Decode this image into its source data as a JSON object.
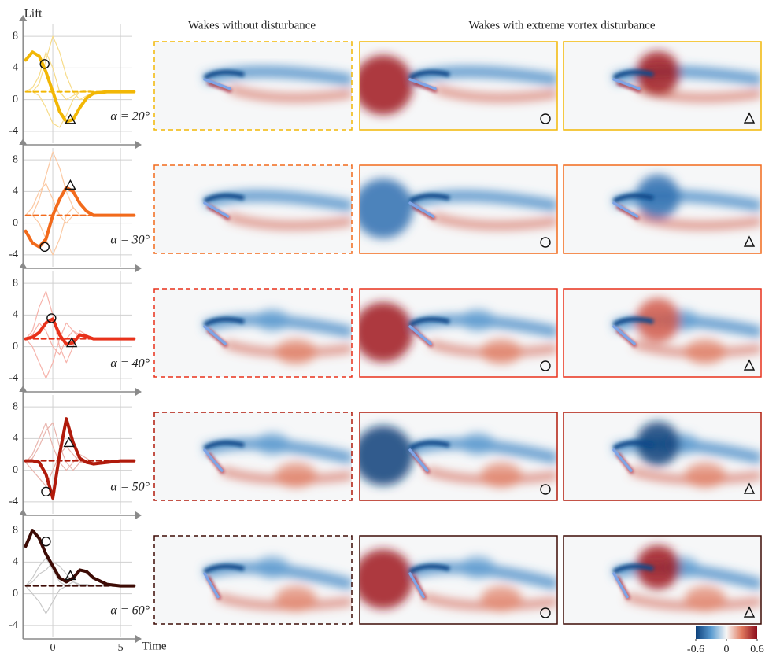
{
  "header": {
    "lift_label": "Lift",
    "time_label": "Time",
    "col1_title": "Wakes without disturbance",
    "col2_title": "Wakes with extreme vortex disturbance"
  },
  "colorbar": {
    "lim": [
      -0.6,
      0.6
    ],
    "ticks": [
      -0.6,
      0,
      0.6
    ]
  },
  "chart_data": [
    {
      "type": "line",
      "annotation": "α = 20°",
      "color": "#f2b705",
      "xlim": [
        -2.2,
        6.1
      ],
      "ylim": [
        -5.5,
        9.5
      ],
      "xticks": [
        0,
        5
      ],
      "yticks": [
        -4,
        0,
        4,
        8
      ],
      "grid": true,
      "show_xtick_labels": false,
      "x": [
        -2,
        -1.5,
        -1,
        -0.5,
        0,
        0.5,
        1,
        1.5,
        2,
        2.5,
        3,
        4,
        5,
        6
      ],
      "series": [
        {
          "color": "#f7dc8a",
          "style": "thin",
          "values": [
            1,
            1,
            2,
            5,
            8,
            6,
            3,
            1,
            0,
            0.5,
            1,
            1,
            1,
            1
          ]
        },
        {
          "color": "#f7dc8a",
          "style": "thin",
          "values": [
            1,
            1,
            0.5,
            -1,
            -3,
            -3.5,
            -2,
            0,
            1,
            1.2,
            1,
            1,
            1,
            1
          ]
        },
        {
          "color": "#f7dc8a",
          "style": "thin",
          "values": [
            1,
            1.5,
            3,
            6,
            4,
            1,
            0,
            0.5,
            1,
            1,
            1,
            1,
            1,
            1
          ]
        },
        {
          "color": "#f2b705",
          "style": "dashed",
          "values": [
            1,
            1,
            1,
            1,
            1,
            1,
            1,
            1,
            1,
            1,
            1,
            1,
            1,
            1
          ]
        },
        {
          "color": "#f2b705",
          "style": "thick",
          "values": [
            5,
            6,
            5.5,
            3.5,
            1,
            -1.5,
            -2.8,
            -2.5,
            -1,
            0.2,
            0.8,
            1,
            1,
            1
          ]
        }
      ],
      "markers": [
        {
          "shape": "circle",
          "x": -0.6,
          "y": 4.5
        },
        {
          "shape": "triangle",
          "x": 1.3,
          "y": -2.5
        }
      ]
    },
    {
      "type": "line",
      "annotation": "α = 30°",
      "color": "#f26a1b",
      "xlim": [
        -2.2,
        6.1
      ],
      "ylim": [
        -5.5,
        9.5
      ],
      "xticks": [
        0,
        5
      ],
      "yticks": [
        -4,
        0,
        4,
        8
      ],
      "grid": true,
      "show_xtick_labels": false,
      "x": [
        -2,
        -1.5,
        -1,
        -0.5,
        0,
        0.5,
        1,
        1.5,
        2,
        2.5,
        3,
        4,
        5,
        6
      ],
      "series": [
        {
          "color": "#fbc9a3",
          "style": "thin",
          "values": [
            1,
            1,
            3,
            6,
            9,
            7,
            4,
            2,
            1,
            1,
            1,
            1,
            1,
            1
          ]
        },
        {
          "color": "#fbc9a3",
          "style": "thin",
          "values": [
            1,
            1,
            0,
            -2,
            -4,
            -2,
            1,
            2,
            1,
            1,
            1,
            1,
            1,
            1
          ]
        },
        {
          "color": "#fbc9a3",
          "style": "thin",
          "values": [
            1,
            2,
            4,
            5,
            3,
            1,
            0,
            1,
            1,
            1,
            1,
            1,
            1,
            1
          ]
        },
        {
          "color": "#f26a1b",
          "style": "dashed",
          "values": [
            1,
            1,
            1,
            1,
            1,
            1,
            1,
            1,
            1,
            1,
            1,
            1,
            1,
            1
          ]
        },
        {
          "color": "#f26a1b",
          "style": "thick",
          "values": [
            -1,
            -2.5,
            -3,
            -2,
            1,
            3,
            4.5,
            4,
            2.5,
            1.5,
            1,
            1,
            1,
            1
          ]
        }
      ],
      "markers": [
        {
          "shape": "circle",
          "x": -0.6,
          "y": -3
        },
        {
          "shape": "triangle",
          "x": 1.3,
          "y": 4.8
        }
      ]
    },
    {
      "type": "line",
      "annotation": "α = 40°",
      "color": "#e8311a",
      "xlim": [
        -2.2,
        6.1
      ],
      "ylim": [
        -5.5,
        9.5
      ],
      "xticks": [
        0,
        5
      ],
      "yticks": [
        -4,
        0,
        4,
        8
      ],
      "grid": true,
      "show_xtick_labels": false,
      "x": [
        -2,
        -1.5,
        -1,
        -0.5,
        0,
        0.5,
        1,
        1.5,
        2,
        2.5,
        3,
        4,
        5,
        6
      ],
      "series": [
        {
          "color": "#f6b3ab",
          "style": "thin",
          "values": [
            1,
            2,
            5,
            7,
            4,
            0,
            -2,
            0,
            2,
            1.5,
            1,
            1,
            1,
            1
          ]
        },
        {
          "color": "#f6b3ab",
          "style": "thin",
          "values": [
            1,
            0,
            -2,
            -4,
            -2,
            1,
            3,
            2,
            1,
            1,
            1,
            1,
            1,
            1
          ]
        },
        {
          "color": "#f6b3ab",
          "style": "thin",
          "values": [
            1,
            1.5,
            3,
            2,
            0,
            -1,
            1,
            2,
            1.5,
            1,
            1,
            1,
            1,
            1
          ]
        },
        {
          "color": "#e8311a",
          "style": "dashed",
          "values": [
            1,
            1,
            1,
            1,
            1,
            1,
            1,
            1,
            1,
            1,
            1,
            1,
            1,
            1
          ]
        },
        {
          "color": "#e8311a",
          "style": "thick",
          "values": [
            1,
            1.2,
            1.8,
            3,
            3.5,
            1.5,
            0.3,
            0.5,
            1.5,
            1.3,
            1,
            1,
            1,
            1
          ]
        }
      ],
      "markers": [
        {
          "shape": "circle",
          "x": -0.1,
          "y": 3.6
        },
        {
          "shape": "triangle",
          "x": 1.4,
          "y": 0.5
        }
      ]
    },
    {
      "type": "line",
      "annotation": "α = 50°",
      "color": "#b01a0b",
      "xlim": [
        -2.2,
        6.1
      ],
      "ylim": [
        -5.5,
        9.5
      ],
      "xticks": [
        0,
        5
      ],
      "yticks": [
        -4,
        0,
        4,
        8
      ],
      "grid": true,
      "show_xtick_labels": false,
      "x": [
        -2,
        -1.5,
        -1,
        -0.5,
        0,
        0.5,
        1,
        1.5,
        2,
        2.5,
        3,
        4,
        5,
        6
      ],
      "series": [
        {
          "color": "#e9b5ae",
          "style": "thin",
          "values": [
            1,
            2,
            4,
            6,
            3,
            1,
            0,
            1,
            2,
            1.5,
            1,
            1,
            1,
            1
          ]
        },
        {
          "color": "#e9b5ae",
          "style": "thin",
          "values": [
            1,
            1.5,
            3,
            5,
            6,
            3,
            1,
            0,
            1,
            1,
            1,
            1,
            1,
            1
          ]
        },
        {
          "color": "#e9b5ae",
          "style": "thin",
          "values": [
            1,
            0,
            -1,
            -2,
            0,
            2,
            3,
            2,
            1,
            1,
            1,
            1,
            1,
            1
          ]
        },
        {
          "color": "#b01a0b",
          "style": "dashed",
          "values": [
            1.2,
            1.2,
            1.2,
            1.2,
            1.2,
            1.2,
            1.2,
            1.2,
            1.2,
            1.2,
            1.2,
            1.2,
            1.2,
            1.2
          ]
        },
        {
          "color": "#b01a0b",
          "style": "thick",
          "values": [
            1.2,
            1.2,
            1,
            -0.5,
            -3.5,
            2,
            6.5,
            3.5,
            1.5,
            1,
            0.8,
            1,
            1.2,
            1.2
          ]
        }
      ],
      "markers": [
        {
          "shape": "circle",
          "x": -0.5,
          "y": -2.7
        },
        {
          "shape": "triangle",
          "x": 1.2,
          "y": 3.5
        }
      ]
    },
    {
      "type": "line",
      "annotation": "α = 60°",
      "color": "#3d0b05",
      "xlim": [
        -2.2,
        6.1
      ],
      "ylim": [
        -5.5,
        9.5
      ],
      "xticks": [
        0,
        5
      ],
      "yticks": [
        -4,
        0,
        4,
        8
      ],
      "grid": true,
      "show_xtick_labels": true,
      "x": [
        -2,
        -1.5,
        -1,
        -0.5,
        0,
        0.5,
        1,
        1.5,
        2,
        2.5,
        3,
        4,
        5,
        6
      ],
      "series": [
        {
          "color": "#c8c8c8",
          "style": "thin",
          "values": [
            1,
            2,
            3.5,
            4.5,
            3,
            1.5,
            1,
            1,
            1.2,
            1.2,
            1,
            1,
            1,
            1
          ]
        },
        {
          "color": "#c8c8c8",
          "style": "thin",
          "values": [
            1,
            0,
            -1,
            -2.5,
            -1,
            0.5,
            1,
            1.5,
            1.2,
            1,
            1,
            1,
            1,
            1
          ]
        },
        {
          "color": "#c8c8c8",
          "style": "thin",
          "values": [
            1,
            1.5,
            2.5,
            3,
            4,
            3.5,
            2.5,
            1.5,
            1,
            1,
            1,
            1,
            1,
            1
          ]
        },
        {
          "color": "#3d0b05",
          "style": "dashed",
          "values": [
            1,
            1,
            1,
            1,
            1,
            1,
            1,
            1,
            1,
            1,
            1,
            1,
            1,
            1
          ]
        },
        {
          "color": "#3d0b05",
          "style": "thick",
          "values": [
            6,
            8,
            7,
            5,
            3.5,
            2,
            1.5,
            2,
            3,
            2.8,
            2,
            1.2,
            1,
            1
          ]
        }
      ],
      "markers": [
        {
          "shape": "circle",
          "x": -0.5,
          "y": 6.6
        },
        {
          "shape": "triangle",
          "x": 1.3,
          "y": 2.3
        }
      ]
    }
  ]
}
